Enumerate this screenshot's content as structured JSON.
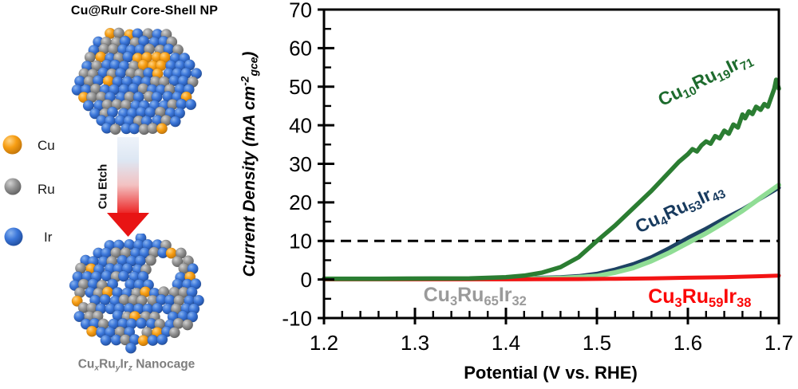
{
  "left_panel": {
    "title": "Cu@RuIr Core-Shell NP",
    "title_color": "#1a70c4",
    "legend": [
      {
        "name": "Cu",
        "color": "#f49b13"
      },
      {
        "name": "Ru",
        "color": "#8f8f8f"
      },
      {
        "name": "Ir",
        "color": "#2f74d0"
      }
    ],
    "etch_label": "Cu Etch",
    "cage_label_parts": [
      [
        "Cu",
        ""
      ],
      [
        "x",
        "subi"
      ],
      [
        "Ru",
        ""
      ],
      [
        "y",
        "subi"
      ],
      [
        "Ir",
        ""
      ],
      [
        "z",
        "subi"
      ],
      [
        "  Nanocage",
        ""
      ]
    ],
    "sphere_colors": {
      "cu_base": "#f79e13",
      "cu_light": "#ffd486",
      "cu_dark": "#b96e08",
      "ru_base": "#949494",
      "ru_light": "#d2d2d2",
      "ru_dark": "#595959",
      "ir_base": "#3b76d9",
      "ir_light": "#8ab4ef",
      "ir_dark": "#1c4794"
    },
    "arrow_colors": {
      "top": "#e7eef8",
      "mid": "#f3c2c2",
      "bottom": "#ec1f1f"
    }
  },
  "chart_data": {
    "type": "line",
    "xlabel": "Potential (V vs. RHE)",
    "ylabel_parts": [
      [
        "Current Density (mA cm",
        ""
      ],
      [
        "-2",
        "sup"
      ],
      [
        "gce",
        "sub"
      ],
      [
        ")",
        ""
      ]
    ],
    "xlim": [
      1.2,
      1.7
    ],
    "ylim": [
      -10,
      70
    ],
    "x_ticks": [
      1.2,
      1.3,
      1.4,
      1.5,
      1.6,
      1.7
    ],
    "y_ticks": [
      -10,
      0,
      10,
      20,
      30,
      40,
      50,
      60,
      70
    ],
    "x_minor_step": 0.02,
    "y_minor_step": 5,
    "grid": false,
    "dashed_reference_line_y": 10,
    "series": [
      {
        "name": "Cu4Ru53Ir43",
        "label_parts": [
          [
            "Cu",
            ""
          ],
          [
            "4",
            "sub"
          ],
          [
            "Ru",
            ""
          ],
          [
            "53",
            "sub"
          ],
          [
            "Ir",
            ""
          ],
          [
            "43",
            "sub"
          ]
        ],
        "color": "#1d4263",
        "label_color": "#173a5e",
        "label_anchor": [
          1.591,
          18.3
        ],
        "label_rot": -25,
        "label_size": 23,
        "width": 5,
        "points": [
          [
            1.2,
            0.1
          ],
          [
            1.3,
            0.1
          ],
          [
            1.38,
            0.2
          ],
          [
            1.42,
            0.35
          ],
          [
            1.46,
            0.6
          ],
          [
            1.48,
            0.9
          ],
          [
            1.5,
            1.5
          ],
          [
            1.52,
            2.6
          ],
          [
            1.54,
            4.0
          ],
          [
            1.56,
            5.8
          ],
          [
            1.58,
            8.2
          ],
          [
            1.6,
            10.8
          ],
          [
            1.62,
            13.2
          ],
          [
            1.64,
            15.8
          ],
          [
            1.66,
            18.2
          ],
          [
            1.68,
            21.0
          ],
          [
            1.7,
            23.8
          ]
        ]
      },
      {
        "name": "Cu3Ru65Ir32",
        "label_parts": [
          [
            "Cu",
            ""
          ],
          [
            "3",
            "sub"
          ],
          [
            "Ru",
            ""
          ],
          [
            "65",
            "sub"
          ],
          [
            "Ir",
            ""
          ],
          [
            "32",
            "sub"
          ]
        ],
        "color": "#90dd95",
        "label_color": "#9a9a9a",
        "label_anchor": [
          1.366,
          -4.5
        ],
        "label_rot": 0,
        "label_size": 25,
        "width": 6,
        "points": [
          [
            1.2,
            0.15
          ],
          [
            1.36,
            0.15
          ],
          [
            1.42,
            0.2
          ],
          [
            1.46,
            0.35
          ],
          [
            1.48,
            0.6
          ],
          [
            1.5,
            0.9
          ],
          [
            1.52,
            1.8
          ],
          [
            1.54,
            3.0
          ],
          [
            1.56,
            4.8
          ],
          [
            1.58,
            7.0
          ],
          [
            1.6,
            9.5
          ],
          [
            1.62,
            12.0
          ],
          [
            1.64,
            14.8
          ],
          [
            1.66,
            17.8
          ],
          [
            1.68,
            21.2
          ],
          [
            1.7,
            24.5
          ]
        ]
      },
      {
        "name": "Cu3Ru59Ir38",
        "label_parts": [
          [
            "Cu",
            ""
          ],
          [
            "3",
            "sub"
          ],
          [
            "Ru",
            ""
          ],
          [
            "59",
            "sub"
          ],
          [
            "Ir",
            ""
          ],
          [
            "38",
            "sub"
          ]
        ],
        "color": "#f31414",
        "label_color": "#fb0707",
        "label_anchor": [
          1.613,
          -4.9
        ],
        "label_rot": 0,
        "label_size": 25,
        "width": 5,
        "points": [
          [
            1.2,
            0.05
          ],
          [
            1.4,
            0.05
          ],
          [
            1.48,
            0.1
          ],
          [
            1.52,
            0.2
          ],
          [
            1.56,
            0.3
          ],
          [
            1.6,
            0.45
          ],
          [
            1.64,
            0.6
          ],
          [
            1.68,
            0.85
          ],
          [
            1.7,
            1.0
          ]
        ]
      },
      {
        "name": "Cu10Ru19Ir71",
        "label_parts": [
          [
            "Cu",
            ""
          ],
          [
            "10",
            "sub"
          ],
          [
            "Ru",
            ""
          ],
          [
            "19",
            "sub"
          ],
          [
            "Ir",
            ""
          ],
          [
            "71",
            "sub"
          ]
        ],
        "color": "#2b7d32",
        "label_color": "#1d6b2d",
        "label_anchor": [
          1.619,
          51.8
        ],
        "label_rot": -26,
        "label_size": 23,
        "width": 5.5,
        "points": [
          [
            1.2,
            0.2
          ],
          [
            1.26,
            0.2
          ],
          [
            1.32,
            0.25
          ],
          [
            1.36,
            0.3
          ],
          [
            1.4,
            0.6
          ],
          [
            1.42,
            1.0
          ],
          [
            1.44,
            1.8
          ],
          [
            1.46,
            3.2
          ],
          [
            1.48,
            5.8
          ],
          [
            1.5,
            10.0
          ],
          [
            1.52,
            14.0
          ],
          [
            1.54,
            18.5
          ],
          [
            1.56,
            23.0
          ],
          [
            1.58,
            28.0
          ],
          [
            1.59,
            30.5
          ],
          [
            1.6,
            32.5
          ],
          [
            1.605,
            33.8
          ],
          [
            1.61,
            33.2
          ],
          [
            1.615,
            34.8
          ],
          [
            1.62,
            35.8
          ],
          [
            1.625,
            35.2
          ],
          [
            1.63,
            37.2
          ],
          [
            1.635,
            36.6
          ],
          [
            1.64,
            38.6
          ],
          [
            1.645,
            37.8
          ],
          [
            1.65,
            40.2
          ],
          [
            1.655,
            39.4
          ],
          [
            1.66,
            42.8
          ],
          [
            1.663,
            41.8
          ],
          [
            1.667,
            43.6
          ],
          [
            1.671,
            42.9
          ],
          [
            1.675,
            44.8
          ],
          [
            1.68,
            44.0
          ],
          [
            1.684,
            45.5
          ],
          [
            1.688,
            44.8
          ],
          [
            1.692,
            47.5
          ],
          [
            1.695,
            49.5
          ],
          [
            1.697,
            51.8
          ],
          [
            1.7,
            49.5
          ]
        ]
      }
    ]
  }
}
